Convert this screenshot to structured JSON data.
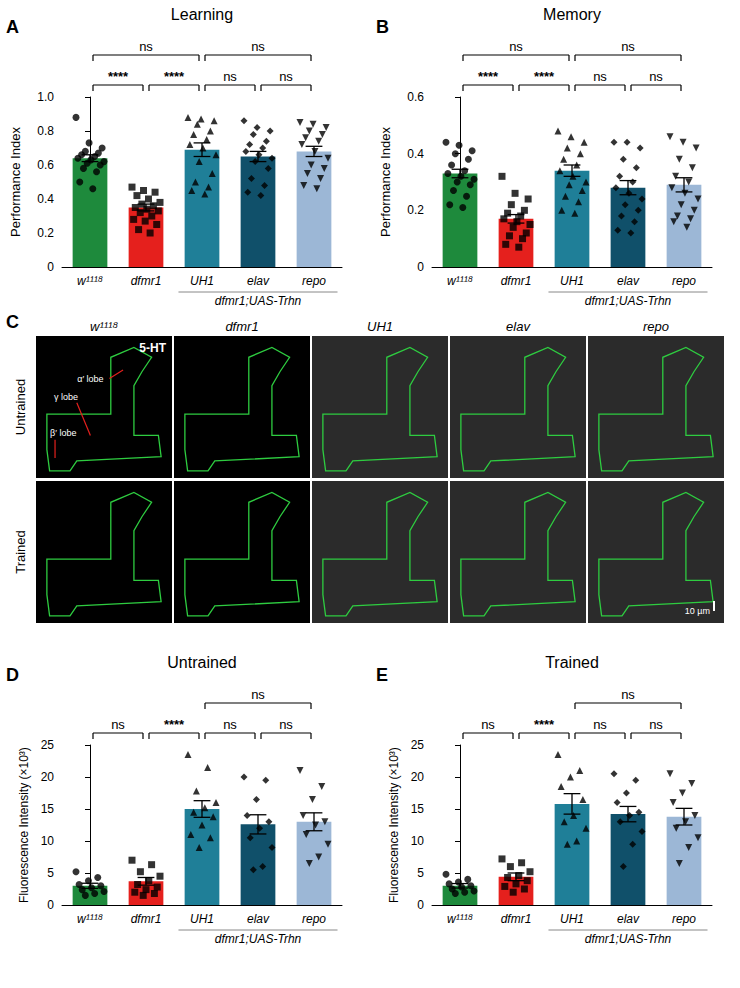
{
  "chart_data": [
    {
      "type": "bar",
      "panel": "A",
      "title": "Learning",
      "y_label": "Performance Index",
      "categories": [
        "w¹¹¹⁸",
        "dfmr1",
        "UH1",
        "elav",
        "repo"
      ],
      "group_label": {
        "text": "dfmr1;UAS-Trhn",
        "from": "UH1",
        "to": "repo"
      },
      "colors": [
        "#1e8a3c",
        "#e5201d",
        "#1f7f98",
        "#10506a",
        "#9cb7d6"
      ],
      "markers": [
        "circle",
        "square",
        "triangle",
        "diamond",
        "triangle-down"
      ],
      "values": [
        0.64,
        0.35,
        0.69,
        0.65,
        0.68
      ],
      "errors": [
        0.02,
        0.02,
        0.04,
        0.03,
        0.03
      ],
      "points": [
        [
          0.88,
          0.73,
          0.7,
          0.68,
          0.67,
          0.66,
          0.65,
          0.64,
          0.63,
          0.62,
          0.61,
          0.6,
          0.58,
          0.56,
          0.5,
          0.46
        ],
        [
          0.47,
          0.45,
          0.44,
          0.42,
          0.4,
          0.38,
          0.37,
          0.36,
          0.35,
          0.34,
          0.33,
          0.32,
          0.3,
          0.28,
          0.27,
          0.25,
          0.22,
          0.2
        ],
        [
          0.88,
          0.87,
          0.86,
          0.84,
          0.8,
          0.78,
          0.75,
          0.72,
          0.7,
          0.66,
          0.62,
          0.55,
          0.5,
          0.47,
          0.45,
          0.43
        ],
        [
          0.86,
          0.82,
          0.8,
          0.78,
          0.74,
          0.72,
          0.7,
          0.68,
          0.66,
          0.64,
          0.62,
          0.58,
          0.52,
          0.48,
          0.44,
          0.42
        ],
        [
          0.85,
          0.84,
          0.82,
          0.8,
          0.78,
          0.76,
          0.74,
          0.72,
          0.68,
          0.64,
          0.6,
          0.58,
          0.55,
          0.52,
          0.48,
          0.46
        ]
      ],
      "ylim": [
        0,
        1
      ],
      "yticks": [
        0,
        0.2,
        0.4,
        0.6,
        0.8,
        {
          "value": 1,
          "label": "1.0"
        }
      ],
      "grid": false,
      "comparisons": [
        {
          "from": "w¹¹¹⁸",
          "to": "dfmr1",
          "label": "****"
        },
        {
          "from": "dfmr1",
          "to": "UH1",
          "label": "****"
        },
        {
          "from": "w¹¹¹⁸",
          "to": "UH1",
          "label": "ns"
        },
        {
          "from": "UH1",
          "to": "elav",
          "label": "ns"
        },
        {
          "from": "elav",
          "to": "repo",
          "label": "ns"
        },
        {
          "from": "UH1",
          "to": "repo",
          "label": "ns"
        }
      ]
    },
    {
      "type": "bar",
      "panel": "B",
      "title": "Memory",
      "y_label": "Performance Index",
      "categories": [
        "w¹¹¹⁸",
        "dfmr1",
        "UH1",
        "elav",
        "repo"
      ],
      "group_label": {
        "text": "dfmr1;UAS-Trhn",
        "from": "UH1",
        "to": "repo"
      },
      "colors": [
        "#1e8a3c",
        "#e5201d",
        "#1f7f98",
        "#10506a",
        "#9cb7d6"
      ],
      "markers": [
        "circle",
        "square",
        "triangle",
        "diamond",
        "triangle-down"
      ],
      "values": [
        0.33,
        0.17,
        0.34,
        0.28,
        0.29
      ],
      "errors": [
        0.015,
        0.015,
        0.02,
        0.025,
        0.025
      ],
      "points": [
        [
          0.44,
          0.43,
          0.41,
          0.4,
          0.38,
          0.36,
          0.34,
          0.33,
          0.32,
          0.31,
          0.3,
          0.29,
          0.27,
          0.25,
          0.22,
          0.21
        ],
        [
          0.32,
          0.26,
          0.24,
          0.22,
          0.2,
          0.19,
          0.18,
          0.17,
          0.16,
          0.15,
          0.14,
          0.12,
          0.11,
          0.1,
          0.08,
          0.07
        ],
        [
          0.48,
          0.46,
          0.44,
          0.42,
          0.4,
          0.38,
          0.36,
          0.34,
          0.32,
          0.3,
          0.29,
          0.27,
          0.25,
          0.23,
          0.2,
          0.19
        ],
        [
          0.44,
          0.44,
          0.42,
          0.38,
          0.35,
          0.32,
          0.3,
          0.28,
          0.26,
          0.24,
          0.22,
          0.2,
          0.18,
          0.16,
          0.13,
          0.12
        ],
        [
          0.46,
          0.44,
          0.42,
          0.38,
          0.35,
          0.32,
          0.3,
          0.28,
          0.26,
          0.24,
          0.22,
          0.2,
          0.18,
          0.17,
          0.16,
          0.14
        ]
      ],
      "ylim": [
        0,
        0.6
      ],
      "yticks": [
        0,
        0.2,
        0.4,
        0.6
      ],
      "grid": false,
      "comparisons": [
        {
          "from": "w¹¹¹⁸",
          "to": "dfmr1",
          "label": "****"
        },
        {
          "from": "dfmr1",
          "to": "UH1",
          "label": "****"
        },
        {
          "from": "w¹¹¹⁸",
          "to": "UH1",
          "label": "ns"
        },
        {
          "from": "UH1",
          "to": "elav",
          "label": "ns"
        },
        {
          "from": "elav",
          "to": "repo",
          "label": "ns"
        },
        {
          "from": "UH1",
          "to": "repo",
          "label": "ns"
        }
      ]
    },
    {
      "type": "bar",
      "panel": "D",
      "title": "Untrained",
      "y_label": "Fluorescence Intensity (×10³)",
      "categories": [
        "w¹¹¹⁸",
        "dfmr1",
        "UH1",
        "elav",
        "repo"
      ],
      "group_label": {
        "text": "dfmr1;UAS-Trhn",
        "from": "UH1",
        "to": "repo"
      },
      "colors": [
        "#1e8a3c",
        "#e5201d",
        "#1f7f98",
        "#10506a",
        "#9cb7d6"
      ],
      "markers": [
        "circle",
        "square",
        "triangle",
        "diamond",
        "triangle-down"
      ],
      "values": [
        3.0,
        3.7,
        15.0,
        12.6,
        13.0
      ],
      "errors": [
        0.4,
        0.6,
        1.3,
        1.5,
        1.4
      ],
      "points": [
        [
          5.2,
          4.3,
          3.8,
          3.2,
          3.0,
          2.7,
          2.4,
          2.1,
          1.8,
          1.5
        ],
        [
          7.0,
          6.3,
          5.2,
          4.5,
          3.8,
          3.2,
          2.8,
          2.4,
          2.0,
          1.8,
          1.5
        ],
        [
          23.5,
          21.5,
          17.8,
          16.0,
          15.2,
          14.5,
          13.8,
          12.5,
          11.0,
          10.5,
          9.0
        ],
        [
          20.0,
          19.5,
          16.5,
          14.0,
          13.0,
          12.0,
          10.5,
          9.0,
          6.0,
          5.5
        ],
        [
          21.0,
          18.5,
          16.5,
          14.0,
          13.0,
          12.5,
          11.0,
          9.5,
          7.5,
          6.5
        ]
      ],
      "ylim": [
        0,
        25
      ],
      "yticks": [
        0,
        5,
        10,
        15,
        20,
        25
      ],
      "grid": false,
      "comparisons": [
        {
          "from": "w¹¹¹⁸",
          "to": "dfmr1",
          "label": "ns"
        },
        {
          "from": "dfmr1",
          "to": "UH1",
          "label": "****"
        },
        {
          "from": "UH1",
          "to": "elav",
          "label": "ns"
        },
        {
          "from": "elav",
          "to": "repo",
          "label": "ns"
        },
        {
          "from": "UH1",
          "to": "repo",
          "label": "ns"
        }
      ]
    },
    {
      "type": "bar",
      "panel": "E",
      "title": "Trained",
      "y_label": "Fluorescence Intensity (×10³)",
      "categories": [
        "w¹¹¹⁸",
        "dfmr1",
        "UH1",
        "elav",
        "repo"
      ],
      "group_label": {
        "text": "dfmr1;UAS-Trhn",
        "from": "UH1",
        "to": "repo"
      },
      "colors": [
        "#1e8a3c",
        "#e5201d",
        "#1f7f98",
        "#10506a",
        "#9cb7d6"
      ],
      "markers": [
        "circle",
        "square",
        "triangle",
        "diamond",
        "triangle-down"
      ],
      "values": [
        3.0,
        4.4,
        15.8,
        14.2,
        13.8
      ],
      "errors": [
        0.35,
        0.6,
        1.6,
        1.2,
        1.3
      ],
      "points": [
        [
          4.8,
          4.0,
          3.6,
          3.3,
          3.0,
          2.8,
          2.5,
          2.2,
          2.0,
          1.8
        ],
        [
          7.2,
          6.6,
          6.0,
          5.2,
          4.6,
          4.3,
          3.8,
          3.3,
          2.9,
          2.5,
          2.0
        ],
        [
          23.5,
          21.0,
          20.0,
          18.5,
          16.5,
          14.0,
          13.0,
          12.0,
          10.0,
          9.5
        ],
        [
          20.5,
          19.5,
          17.5,
          16.0,
          14.5,
          14.0,
          13.0,
          11.5,
          9.5,
          6.0
        ],
        [
          20.5,
          19.0,
          17.5,
          16.0,
          14.0,
          13.0,
          12.0,
          10.5,
          9.0,
          6.5
        ]
      ],
      "ylim": [
        0,
        25
      ],
      "yticks": [
        0,
        5,
        10,
        15,
        20,
        25
      ],
      "grid": false,
      "comparisons": [
        {
          "from": "w¹¹¹⁸",
          "to": "dfmr1",
          "label": "ns"
        },
        {
          "from": "dfmr1",
          "to": "UH1",
          "label": "****"
        },
        {
          "from": "UH1",
          "to": "elav",
          "label": "ns"
        },
        {
          "from": "elav",
          "to": "repo",
          "label": "ns"
        },
        {
          "from": "UH1",
          "to": "repo",
          "label": "ns"
        }
      ]
    }
  ],
  "image_panel": {
    "panel": "C",
    "stain": "5-HT",
    "columns": [
      "w¹¹¹⁸",
      "dfmr1",
      "UH1",
      "elav",
      "repo"
    ],
    "rows": [
      "Untrained",
      "Trained"
    ],
    "lobe_labels": [
      "α′ lobe",
      "γ lobe",
      "β′ lobe"
    ],
    "scale_bar": "10 µm"
  }
}
